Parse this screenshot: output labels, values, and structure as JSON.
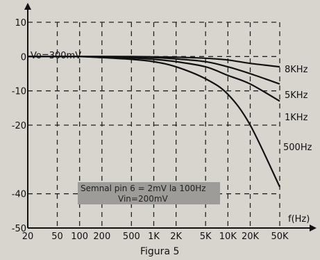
{
  "chart_data": {
    "type": "line",
    "title": "",
    "caption": "Figura 5",
    "xlabel": "f(Hz)",
    "ylabel": "",
    "x_scale": "log",
    "xlim": [
      20,
      50000
    ],
    "ylim": [
      -50,
      10
    ],
    "grid": true,
    "x_ticks": [
      {
        "value": 20,
        "label": "20"
      },
      {
        "value": 50,
        "label": "50"
      },
      {
        "value": 100,
        "label": "100"
      },
      {
        "value": 200,
        "label": "200"
      },
      {
        "value": 500,
        "label": "500"
      },
      {
        "value": 1000,
        "label": "1K"
      },
      {
        "value": 2000,
        "label": "2K"
      },
      {
        "value": 5000,
        "label": "5K"
      },
      {
        "value": 10000,
        "label": "10K"
      },
      {
        "value": 20000,
        "label": "20K"
      },
      {
        "value": 50000,
        "label": "50K"
      }
    ],
    "y_ticks": [
      {
        "value": 10,
        "label": "10"
      },
      {
        "value": 0,
        "label": "0"
      },
      {
        "value": -10,
        "label": "-10"
      },
      {
        "value": -20,
        "label": "-20"
      },
      {
        "value": -40,
        "label": "-40"
      },
      {
        "value": -50,
        "label": "-50"
      }
    ],
    "annotations": {
      "vo": "Vo=300mV",
      "note_line1": "Semnal pin 6 = 2mV la 100Hz",
      "note_line2": "Vin=200mV"
    },
    "x": [
      20,
      50,
      100,
      200,
      500,
      1000,
      2000,
      5000,
      10000,
      20000,
      50000
    ],
    "series": [
      {
        "name": "8KHz",
        "values": [
          0,
          0,
          0,
          0,
          0,
          -0.1,
          -0.2,
          -0.5,
          -1,
          -2,
          -3
        ]
      },
      {
        "name": "5KHz",
        "values": [
          0,
          0,
          0,
          0,
          -0.1,
          -0.3,
          -0.7,
          -1.5,
          -3,
          -5,
          -8
        ]
      },
      {
        "name": "1KHz",
        "values": [
          0,
          0,
          0,
          -0.2,
          -0.4,
          -0.8,
          -1.5,
          -3,
          -5.5,
          -8,
          -13
        ]
      },
      {
        "name": "500Hz",
        "values": [
          0,
          0,
          0,
          -0.3,
          -0.8,
          -1.5,
          -3,
          -6.5,
          -11,
          -20,
          -38
        ]
      }
    ]
  },
  "colors": {
    "background": "#d8d5cf",
    "line": "#111111",
    "grid": "#222222",
    "note_box": "#9e9c98"
  }
}
